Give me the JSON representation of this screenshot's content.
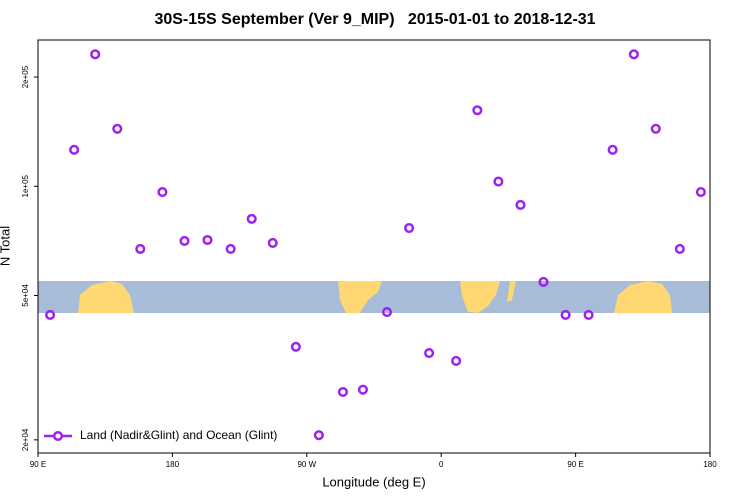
{
  "chart_data": {
    "type": "scatter",
    "title": "30S-15S September (Ver 9_MIP)   2015-01-01 to 2018-12-31",
    "x_label": "Longitude (deg E)",
    "y_label": "N Total",
    "x": [
      98.1,
      114.2,
      128.3,
      143.1,
      158.5,
      173.3,
      188.1,
      203.5,
      219,
      233.1,
      247.2,
      262.7,
      278.1,
      294.2,
      307.6,
      323.7,
      338.5,
      351.9,
      370,
      384.2,
      398.3,
      413.1,
      428.5,
      443.3,
      458.7,
      474.8,
      489,
      503.7,
      519.8,
      533.9
    ],
    "series": [
      {
        "name": "Land (Nadir&Glint) and Ocean (Glint)",
        "color": "#a020f0",
        "values": [
          44200,
          126000,
          231000,
          144000,
          67200,
          96400,
          70700,
          71100,
          67200,
          81300,
          69800,
          36100,
          20600,
          27100,
          27500,
          45000,
          76700,
          34700,
          33000,
          162000,
          103000,
          88800,
          54500,
          44200,
          44200,
          126000,
          231000,
          144000,
          67200,
          96400
        ]
      }
    ],
    "xlim": [
      90,
      540
    ],
    "xticks": [
      {
        "value": 90,
        "label": "90 E"
      },
      {
        "value": 180,
        "label": "180"
      },
      {
        "value": 270,
        "label": "90 W"
      },
      {
        "value": 360,
        "label": "0"
      },
      {
        "value": 450,
        "label": "90 E"
      },
      {
        "value": 540,
        "label": "180"
      }
    ],
    "ylim": [
      18400,
      253000
    ],
    "y_scale": "log",
    "yticks": [
      {
        "value": 20000,
        "label": "2e+04"
      },
      {
        "value": 50000,
        "label": "5e+04"
      },
      {
        "value": 100000,
        "label": "1e+05"
      },
      {
        "value": 200000,
        "label": "2e+05"
      }
    ],
    "legend": "bottomleft"
  }
}
